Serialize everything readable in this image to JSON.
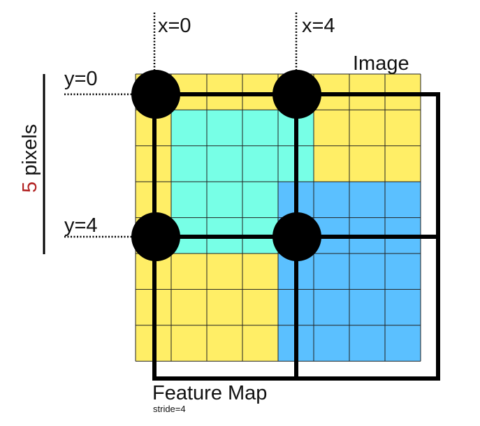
{
  "labels": {
    "x0": "x=0",
    "x4": "x=4",
    "y0": "y=0",
    "y4": "y=4",
    "image": "Image",
    "pixels_num": "5",
    "pixels_word": " pixels",
    "feature_map": "Feature Map",
    "stride": "stride=4"
  },
  "colors": {
    "yellow": "#FFEE66",
    "cyan": "#77FFE6",
    "blue": "#5BC0FF",
    "grid": "#222222",
    "frame": "#000000",
    "accent_red": "#B22222"
  }
}
